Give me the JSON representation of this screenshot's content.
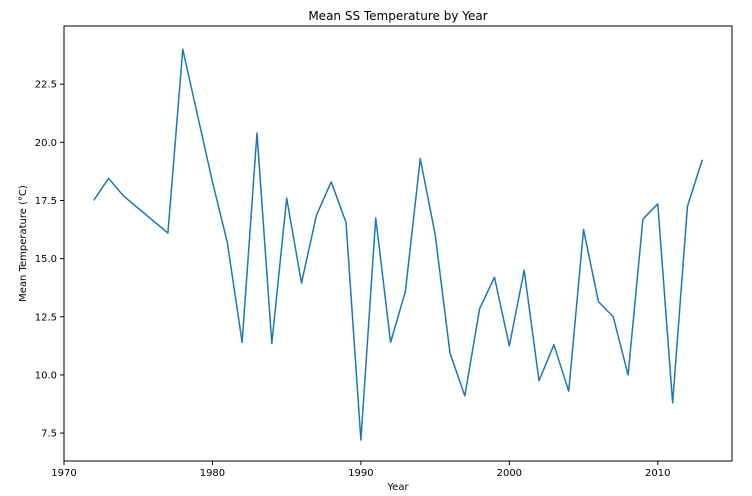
{
  "chart_data": {
    "type": "line",
    "title": "Mean SS Temperature by Year",
    "xlabel": "Year",
    "ylabel": "Mean Temperature (°C)",
    "xlim": [
      1970,
      2015
    ],
    "ylim": [
      6.3,
      25.0
    ],
    "xticks": [
      1970,
      1980,
      1990,
      2000,
      2010
    ],
    "yticks": [
      7.5,
      10.0,
      12.5,
      15.0,
      17.5,
      20.0,
      22.5
    ],
    "ytick_labels": [
      "7.5",
      "10.0",
      "12.5",
      "15.0",
      "17.5",
      "20.0",
      "22.5"
    ],
    "grid": false,
    "series": [
      {
        "color": "#1f77b4",
        "x": [
          1972,
          1973,
          1974,
          1977,
          1978,
          1980,
          1981,
          1982,
          1983,
          1984,
          1985,
          1986,
          1987,
          1988,
          1989,
          1990,
          1991,
          1992,
          1993,
          1994,
          1995,
          1996,
          1997,
          1998,
          1999,
          2000,
          2001,
          2002,
          2003,
          2004,
          2005,
          2006,
          2007,
          2008,
          2009,
          2010,
          2011,
          2012,
          2013
        ],
        "y": [
          17.5,
          18.45,
          17.7,
          16.1,
          24.0,
          18.3,
          15.7,
          11.4,
          20.4,
          11.35,
          17.6,
          13.95,
          16.85,
          18.3,
          16.55,
          7.2,
          16.75,
          11.4,
          13.6,
          19.3,
          16.05,
          10.95,
          9.1,
          12.85,
          14.2,
          11.25,
          14.5,
          9.75,
          11.3,
          9.3,
          16.25,
          13.15,
          12.5,
          10.0,
          16.7,
          17.35,
          8.8,
          17.25,
          19.25
        ]
      }
    ]
  }
}
